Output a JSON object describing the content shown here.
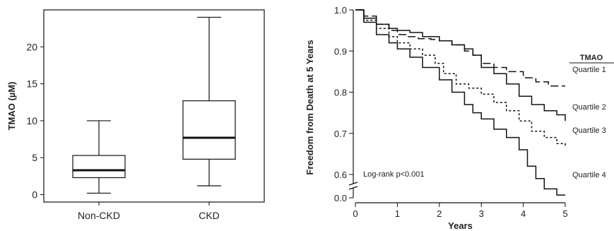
{
  "chart_data": [
    {
      "type": "box",
      "ylabel": "TMAO (µM)",
      "ylim": [
        -1,
        25
      ],
      "yticks": [
        0,
        5,
        10,
        15,
        20
      ],
      "categories": [
        "Non-CKD",
        "CKD"
      ],
      "boxes": [
        {
          "label": "Non-CKD",
          "min": 0.2,
          "q1": 2.3,
          "median": 3.3,
          "q3": 5.3,
          "max": 10.0
        },
        {
          "label": "CKD",
          "min": 1.2,
          "q1": 4.8,
          "median": 7.7,
          "q3": 12.7,
          "max": 24.0
        }
      ],
      "frame": "box",
      "grid": false
    },
    {
      "type": "line",
      "subtype": "kaplan-meier",
      "xlabel": "Years",
      "ylabel": "Freedom from Death at 5 Years",
      "xlim": [
        0,
        5
      ],
      "ylim": [
        0.0,
        1.0
      ],
      "xticks": [
        0,
        1,
        2,
        3,
        4,
        5
      ],
      "yticks": [
        0.0,
        0.6,
        0.7,
        0.8,
        0.9,
        1.0
      ],
      "ytick_labels": [
        "0.0",
        "0.6",
        "0.7",
        "0.8",
        "0.9",
        "1.0"
      ],
      "axis_break": "between 0.0 and 0.6",
      "annotation": "Log-rank p<0.001",
      "legend_title": "TMAO",
      "legend_placement": "right",
      "series": [
        {
          "name": "Quartile 1",
          "style": "long-dash",
          "x": [
            0,
            0.2,
            0.5,
            0.8,
            1.0,
            1.2,
            1.5,
            1.8,
            2.0,
            2.3,
            2.6,
            2.8,
            3.0,
            3.3,
            3.6,
            4.0,
            4.3,
            4.6,
            5.0
          ],
          "y": [
            1.0,
            0.985,
            0.965,
            0.95,
            0.94,
            0.935,
            0.93,
            0.928,
            0.925,
            0.915,
            0.9,
            0.89,
            0.87,
            0.86,
            0.85,
            0.835,
            0.825,
            0.815,
            0.815
          ]
        },
        {
          "name": "Quartile 2",
          "style": "solid",
          "x": [
            0,
            0.2,
            0.5,
            0.8,
            1.0,
            1.3,
            1.6,
            2.0,
            2.3,
            2.6,
            2.8,
            3.0,
            3.3,
            3.6,
            3.9,
            4.2,
            4.5,
            4.8,
            5.0
          ],
          "y": [
            1.0,
            0.98,
            0.965,
            0.955,
            0.95,
            0.945,
            0.935,
            0.925,
            0.915,
            0.905,
            0.89,
            0.86,
            0.845,
            0.82,
            0.79,
            0.77,
            0.755,
            0.745,
            0.73
          ]
        },
        {
          "name": "Quartile 3",
          "style": "short-dash",
          "x": [
            0,
            0.2,
            0.5,
            0.8,
            1.0,
            1.3,
            1.6,
            1.9,
            2.1,
            2.4,
            2.7,
            3.0,
            3.3,
            3.6,
            3.9,
            4.2,
            4.5,
            4.8,
            5.0
          ],
          "y": [
            1.0,
            0.975,
            0.955,
            0.935,
            0.92,
            0.905,
            0.89,
            0.87,
            0.845,
            0.82,
            0.81,
            0.795,
            0.775,
            0.755,
            0.73,
            0.705,
            0.69,
            0.675,
            0.665
          ]
        },
        {
          "name": "Quartile 4",
          "style": "solid",
          "x": [
            0,
            0.2,
            0.5,
            0.8,
            1.0,
            1.3,
            1.6,
            2.0,
            2.3,
            2.6,
            2.8,
            3.0,
            3.3,
            3.6,
            3.9,
            4.1,
            4.3,
            4.5,
            4.8,
            5.0
          ],
          "y": [
            1.0,
            0.97,
            0.94,
            0.92,
            0.905,
            0.885,
            0.86,
            0.83,
            0.8,
            0.77,
            0.75,
            0.735,
            0.71,
            0.69,
            0.66,
            0.62,
            0.59,
            0.565,
            0.55,
            0.55
          ]
        }
      ],
      "series_end_labels": [
        "Quartile 1",
        "Quartile 2",
        "Quartile 3",
        "Quartile 4"
      ]
    }
  ]
}
